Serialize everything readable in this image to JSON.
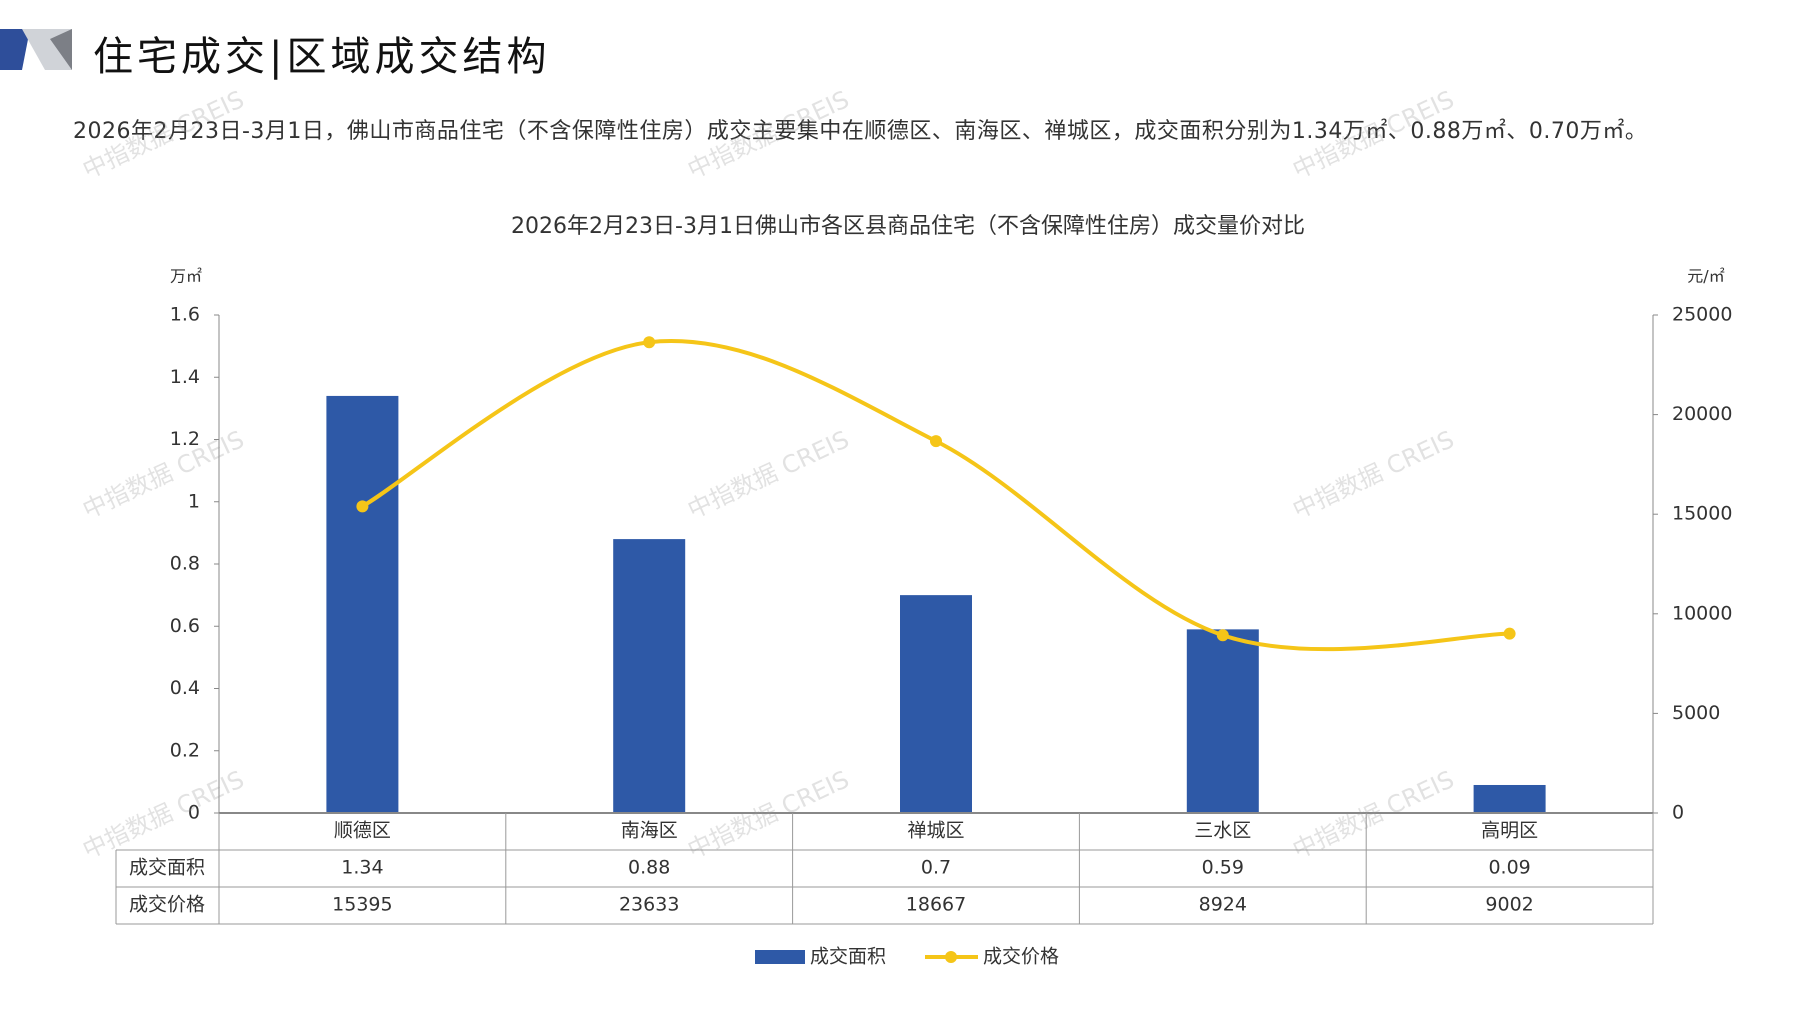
{
  "header": {
    "title": "住宅成交|区域成交结构"
  },
  "summary": "2026年2月23日-3月1日，佛山市商品住宅（不含保障性住房）成交主要集中在顺德区、南海区、禅城区，成交面积分别为1.34万㎡、0.88万㎡、0.70万㎡。",
  "watermark": "中指数据 CREIS",
  "chart_data": {
    "type": "bar",
    "title": "2026年2月23日-3月1日佛山市各区县商品住宅（不含保障性住房）成交量价对比",
    "categories": [
      "顺德区",
      "南海区",
      "禅城区",
      "三水区",
      "高明区"
    ],
    "y_left": {
      "label": "万㎡",
      "ylim": [
        0,
        1.6
      ],
      "ticks": [
        "0",
        "0.2",
        "0.4",
        "0.6",
        "0.8",
        "1",
        "1.2",
        "1.4",
        "1.6"
      ]
    },
    "y_right": {
      "label": "元/㎡",
      "ylim": [
        0,
        25000
      ],
      "ticks": [
        "0",
        "5000",
        "10000",
        "15000",
        "20000",
        "25000"
      ]
    },
    "series": [
      {
        "name": "成交面积",
        "type": "bar",
        "color": "#2E59A7",
        "values": [
          1.34,
          0.88,
          0.7,
          0.59,
          0.09
        ],
        "labels": [
          "1.34",
          "0.88",
          "0.7",
          "0.59",
          "0.09"
        ]
      },
      {
        "name": "成交价格",
        "type": "line",
        "axis": "right",
        "color": "#F5C518",
        "values": [
          15395,
          23633,
          18667,
          8924,
          9002
        ],
        "labels": [
          "15395",
          "23633",
          "18667",
          "8924",
          "9002"
        ]
      }
    ],
    "legend": "bottom",
    "data_table": true
  }
}
